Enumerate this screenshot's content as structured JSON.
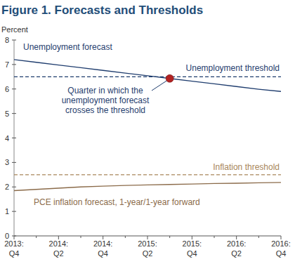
{
  "chart_data": {
    "type": "line",
    "title": "Figure 1. Forecasts and Thresholds",
    "y_label": "Percent",
    "categories": [
      "2013: Q4",
      null,
      "2014: Q2",
      null,
      "2014: Q4",
      null,
      "2015: Q2",
      null,
      "2015: Q4",
      null,
      "2016: Q2",
      null,
      "2016: Q4"
    ],
    "series": [
      {
        "name": "Unemployment forecast",
        "color": "#1f3d6e",
        "line_style": "solid",
        "values": [
          7.2,
          7.09,
          6.98,
          6.87,
          6.76,
          6.65,
          6.54,
          6.43,
          6.32,
          6.21,
          6.1,
          5.99,
          5.9
        ]
      },
      {
        "name": "Unemployment threshold",
        "color": "#1f3d6e",
        "line_style": "dashed",
        "values": [
          6.5,
          6.5,
          6.5,
          6.5,
          6.5,
          6.5,
          6.5,
          6.5,
          6.5,
          6.5,
          6.5,
          6.5,
          6.5
        ]
      },
      {
        "name": "Inflation threshold",
        "color": "#a8865a",
        "line_style": "dashed",
        "values": [
          2.5,
          2.5,
          2.5,
          2.5,
          2.5,
          2.5,
          2.5,
          2.5,
          2.5,
          2.5,
          2.5,
          2.5,
          2.5
        ]
      },
      {
        "name": "PCE inflation forecast, 1-year/1-year forward",
        "color": "#8b6b4a",
        "line_style": "solid",
        "values": [
          1.85,
          1.9,
          1.95,
          2.0,
          2.03,
          2.06,
          2.08,
          2.1,
          2.12,
          2.14,
          2.15,
          2.17,
          2.18
        ]
      }
    ],
    "annotations": [
      {
        "text": [
          "Quarter in which the",
          "unemployment forecast",
          "crosses the threshold"
        ],
        "x": 7,
        "y": 6.43,
        "color": "#b22222"
      }
    ],
    "ylim": [
      0,
      8
    ],
    "yticks": [
      0,
      1,
      2,
      3,
      4,
      5,
      6,
      7,
      8
    ],
    "grid": false
  }
}
